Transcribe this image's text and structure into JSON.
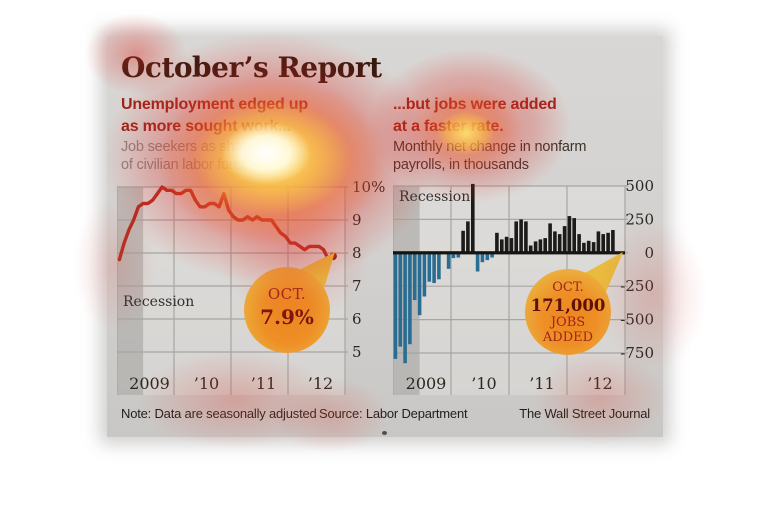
{
  "title": "October’s Report",
  "left": {
    "headline1": "Unemployment edged up",
    "headline2": "as more sought work...",
    "subtitle1": "Job seekers as share",
    "subtitle2": "of civilian labor force",
    "recession_label": "Recession",
    "callout_month": "OCT.",
    "callout_value": "7.9%"
  },
  "right": {
    "headline1": "...but jobs were added",
    "headline2": "at a faster rate.",
    "subtitle1": "Monthly net change in nonfarm",
    "subtitle2": "payrolls, in thousands",
    "recession_label": "Recession",
    "callout_month": "OCT.",
    "callout_value": "171,000",
    "callout_line3": "JOBS",
    "callout_line4": "ADDED"
  },
  "footer": {
    "note": "Note: Data are seasonally adjusted",
    "source": "Source: Labor Department",
    "credit": "The Wall Street Journal"
  },
  "colors": {
    "headline_red": "#9c2318",
    "line_red": "#b52c1e",
    "bar_negative_teal": "#2a6d92",
    "bar_positive_black": "#1d1b1a",
    "bubble_orange": "#ee8f26",
    "bubble_yellow_edge": "#e7c14e",
    "grid_gray": "#a8a5a2"
  },
  "chart_data": [
    {
      "type": "line",
      "title": "Unemployment edged up as more sought work...",
      "ylabel": "Job seekers as share of civilian labor force (%)",
      "x_start": "2009-01",
      "x_end": "2012-10",
      "x_tick_labels": [
        "2009",
        "’10",
        "’11",
        "’12"
      ],
      "y_ticks": [
        {
          "label": "10%",
          "value": 10
        },
        {
          "label": "9",
          "value": 9
        },
        {
          "label": "8",
          "value": 8
        },
        {
          "label": "7",
          "value": 7
        },
        {
          "label": "6",
          "value": 6
        },
        {
          "label": "5",
          "value": 5
        }
      ],
      "ylim": [
        4.6,
        10.2
      ],
      "recession_months": [
        0,
        5.5
      ],
      "values": [
        7.8,
        8.3,
        8.7,
        9.0,
        9.4,
        9.5,
        9.5,
        9.6,
        9.8,
        10.0,
        9.9,
        9.9,
        9.8,
        9.8,
        9.9,
        9.9,
        9.6,
        9.4,
        9.4,
        9.5,
        9.5,
        9.4,
        9.8,
        9.3,
        9.1,
        9.0,
        9.0,
        9.1,
        9.0,
        9.1,
        9.0,
        9.0,
        9.0,
        8.8,
        8.6,
        8.5,
        8.3,
        8.3,
        8.2,
        8.1,
        8.2,
        8.2,
        8.2,
        8.1,
        7.8,
        7.9
      ],
      "last_point_label": "OCT. 7.9%"
    },
    {
      "type": "bar",
      "title": "Monthly net change in nonfarm payrolls, in thousands",
      "x_start": "2009-01",
      "x_end": "2012-10",
      "x_tick_labels": [
        "2009",
        "’10",
        "’11",
        "’12"
      ],
      "y_ticks": [
        {
          "label": "500",
          "value": 500
        },
        {
          "label": "250",
          "value": 250
        },
        {
          "label": "0",
          "value": 0
        },
        {
          "label": "-250",
          "value": -250
        },
        {
          "label": "-500",
          "value": -500
        },
        {
          "label": "-750",
          "value": -750
        }
      ],
      "ylim": [
        -870,
        530
      ],
      "recession_months": [
        0,
        5.5
      ],
      "values": [
        -794,
        -702,
        -826,
        -684,
        -354,
        -467,
        -327,
        -216,
        -227,
        -198,
        -6,
        -120,
        -40,
        -35,
        165,
        235,
        516,
        -140,
        -70,
        -55,
        -35,
        150,
        100,
        120,
        110,
        235,
        250,
        235,
        55,
        85,
        100,
        110,
        220,
        160,
        140,
        200,
        275,
        260,
        140,
        75,
        90,
        80,
        160,
        140,
        150,
        171
      ],
      "last_point_label": "OCT. 171,000 JOBS ADDED"
    }
  ]
}
